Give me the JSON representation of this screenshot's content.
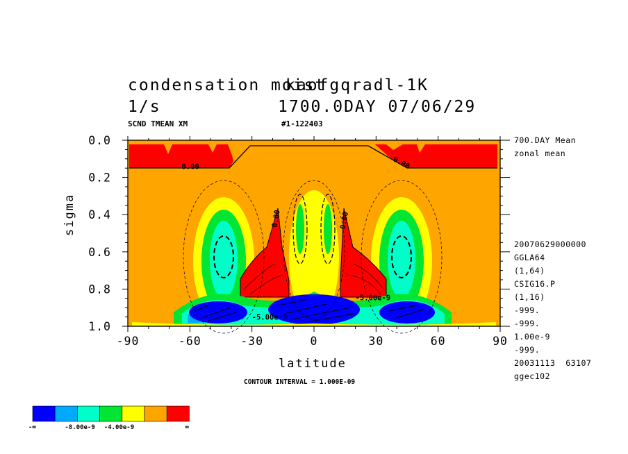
{
  "header": {
    "title_left": "condensation moist",
    "title_right": "kaofgqradl-1K",
    "units": "1/s",
    "time": "1700.0DAY 07/06/29",
    "varname": "SCND TMEAN XM",
    "range": "#1-122403"
  },
  "side_info": {
    "line1": "700.DAY Mean",
    "line2": "zonal mean",
    "meta": [
      "20070629000000",
      "GGLA64",
      "(1,64)",
      "CSIG16.P",
      "(1,16)",
      "-999.",
      "-999.",
      "1.00e-9",
      "-999.",
      "20031113  63107",
      "ggec102"
    ]
  },
  "footer": {
    "contour_interval": "CONTOUR INTERVAL = 1.000E-09"
  },
  "colorbar": {
    "colors": [
      "#0000ff",
      "#00aaff",
      "#00ffc8",
      "#00e632",
      "#ffff00",
      "#ffa500",
      "#ff0000"
    ],
    "labels": [
      "-∞",
      "-8.00e-9",
      "-4.00e-9",
      "∞"
    ]
  },
  "chart_data": {
    "type": "heatmap",
    "xlabel": "latitude",
    "ylabel": "sigma",
    "xlim": [
      -90,
      90
    ],
    "ylim": [
      1.0,
      0.0
    ],
    "x_ticks": [
      -90,
      -60,
      -30,
      0,
      30,
      60,
      90
    ],
    "x_tick_labels": [
      "-90",
      "-60",
      "-30",
      "0",
      "30",
      "60",
      "90"
    ],
    "y_ticks": [
      0.0,
      0.2,
      0.4,
      0.6,
      0.8,
      1.0
    ],
    "y_tick_labels": [
      "0.0",
      "0.2",
      "0.4",
      "0.6",
      "0.8",
      "1.0"
    ],
    "contour_labels": [
      {
        "text": "0.00",
        "lat": -64,
        "sigma": 0.155
      },
      {
        "text": "0.00",
        "lat": 38,
        "sigma": 0.11
      },
      {
        "text": "0.00",
        "lat": -18,
        "sigma": 0.47
      },
      {
        "text": "0.00",
        "lat": 15,
        "sigma": 0.48
      },
      {
        "text": "-5.00e-9",
        "lat": 20,
        "sigma": 0.86
      },
      {
        "text": "-5.00e-9",
        "lat": -30,
        "sigma": 0.965
      }
    ]
  }
}
